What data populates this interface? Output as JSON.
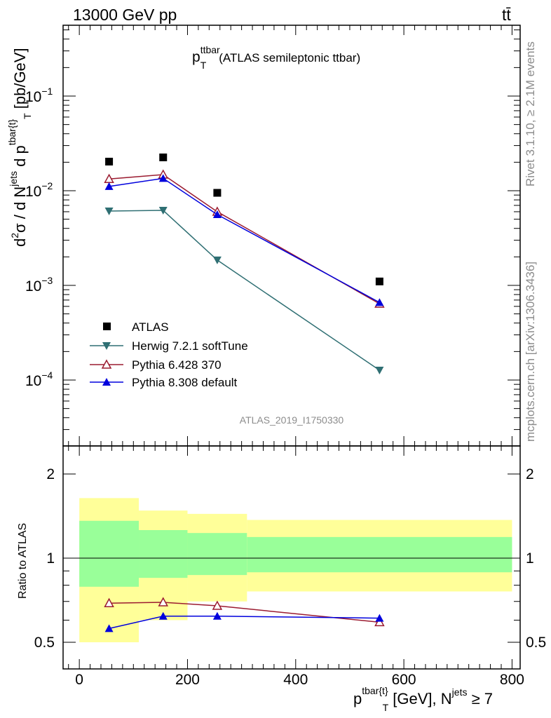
{
  "header": {
    "energy_label": "13000 GeV pp",
    "process_label": "tt̄"
  },
  "side_labels": {
    "rivet": "Rivet 3.1.10, ≥ 2.1M events",
    "mcplots": "mcplots.cern.ch [arXiv:1306.3436]"
  },
  "chart_data": [
    {
      "type": "scatter",
      "panel": "main",
      "title_main": "p",
      "title_sup": "ttbar",
      "title_sub": "T",
      "title_rest": "(ATLAS semileptonic ttbar)",
      "ylabel": "d²σ / d N^jets d p^tbar{t}_T [pb/GeV]",
      "ylabel_parts": {
        "d2": "d",
        "two": "2",
        "sigma_part": "σ  /  d N",
        "jets": "jets",
        "dp": " d p",
        "tbar": "tbar{t}",
        "T": "T",
        "unit": " [pb/GeV]"
      },
      "yscale": "log",
      "ylim": [
        2.5e-05,
        0.8
      ],
      "y_ticks": [
        {
          "base": "10",
          "exp": "−1",
          "value": 0.1
        },
        {
          "base": "10",
          "exp": "−2",
          "value": 0.01
        },
        {
          "base": "10",
          "exp": "−3",
          "value": 0.001
        },
        {
          "base": "10",
          "exp": "−4",
          "value": 0.0001
        }
      ],
      "x": [
        55,
        155,
        255,
        555
      ],
      "series": [
        {
          "name": "ATLAS",
          "marker": "square",
          "color": "#000000",
          "line": false,
          "values": [
            0.0203,
            0.0225,
            0.0095,
            0.0011
          ]
        },
        {
          "name": "Herwig 7.2.1 softTune",
          "marker": "triangle-down",
          "color": "#2f6f73",
          "line": true,
          "values": [
            0.0061,
            0.0062,
            0.00185,
            0.000127
          ]
        },
        {
          "name": "Pythia 6.428 370",
          "marker": "triangle-open",
          "color": "#9b1b30",
          "line": true,
          "values": [
            0.0133,
            0.0148,
            0.006,
            0.00064
          ]
        },
        {
          "name": "Pythia 8.308 default",
          "marker": "triangle-up",
          "color": "#0000dd",
          "line": true,
          "values": [
            0.0111,
            0.0135,
            0.0056,
            0.00066
          ]
        }
      ],
      "watermark": "ATLAS_2019_I1750330",
      "legend_position": "lower-left"
    },
    {
      "type": "line",
      "panel": "ratio",
      "ylabel": "Ratio to ATLAS",
      "ylim": [
        0.4,
        2.3
      ],
      "y_ticks": [
        "2",
        "1",
        "0.5"
      ],
      "y_tick_values": [
        2,
        1,
        0.5
      ],
      "xlim": [
        -30,
        815
      ],
      "x_ticks": [
        "0",
        "200",
        "400",
        "600",
        "800"
      ],
      "x_tick_values": [
        0,
        200,
        400,
        600,
        800
      ],
      "xlabel": "p^tbar{t}_T [GeV], N^jets ≥ 7",
      "xlabel_parts": {
        "p": "p",
        "tbar": "tbar{t}",
        "T": "T",
        "gev": " [GeV], N",
        "jets": "jets",
        "ge": " ≥ 7"
      },
      "x": [
        55,
        155,
        255,
        555
      ],
      "bins": [
        [
          0,
          110
        ],
        [
          110,
          200
        ],
        [
          200,
          310
        ],
        [
          310,
          800
        ]
      ],
      "band_yellow": [
        [
          0.5,
          1.64
        ],
        [
          0.6,
          1.48
        ],
        [
          0.7,
          1.44
        ],
        [
          0.76,
          1.37
        ]
      ],
      "band_green": [
        [
          0.79,
          1.36
        ],
        [
          0.85,
          1.26
        ],
        [
          0.87,
          1.23
        ],
        [
          0.89,
          1.19
        ]
      ],
      "series": [
        {
          "name": "Pythia 6.428 370",
          "color": "#9b1b30",
          "values": [
            0.69,
            0.695,
            0.675,
            0.59
          ]
        },
        {
          "name": "Pythia 8.308 default",
          "color": "#0000dd",
          "values": [
            0.56,
            0.62,
            0.62,
            0.61
          ]
        }
      ]
    }
  ]
}
